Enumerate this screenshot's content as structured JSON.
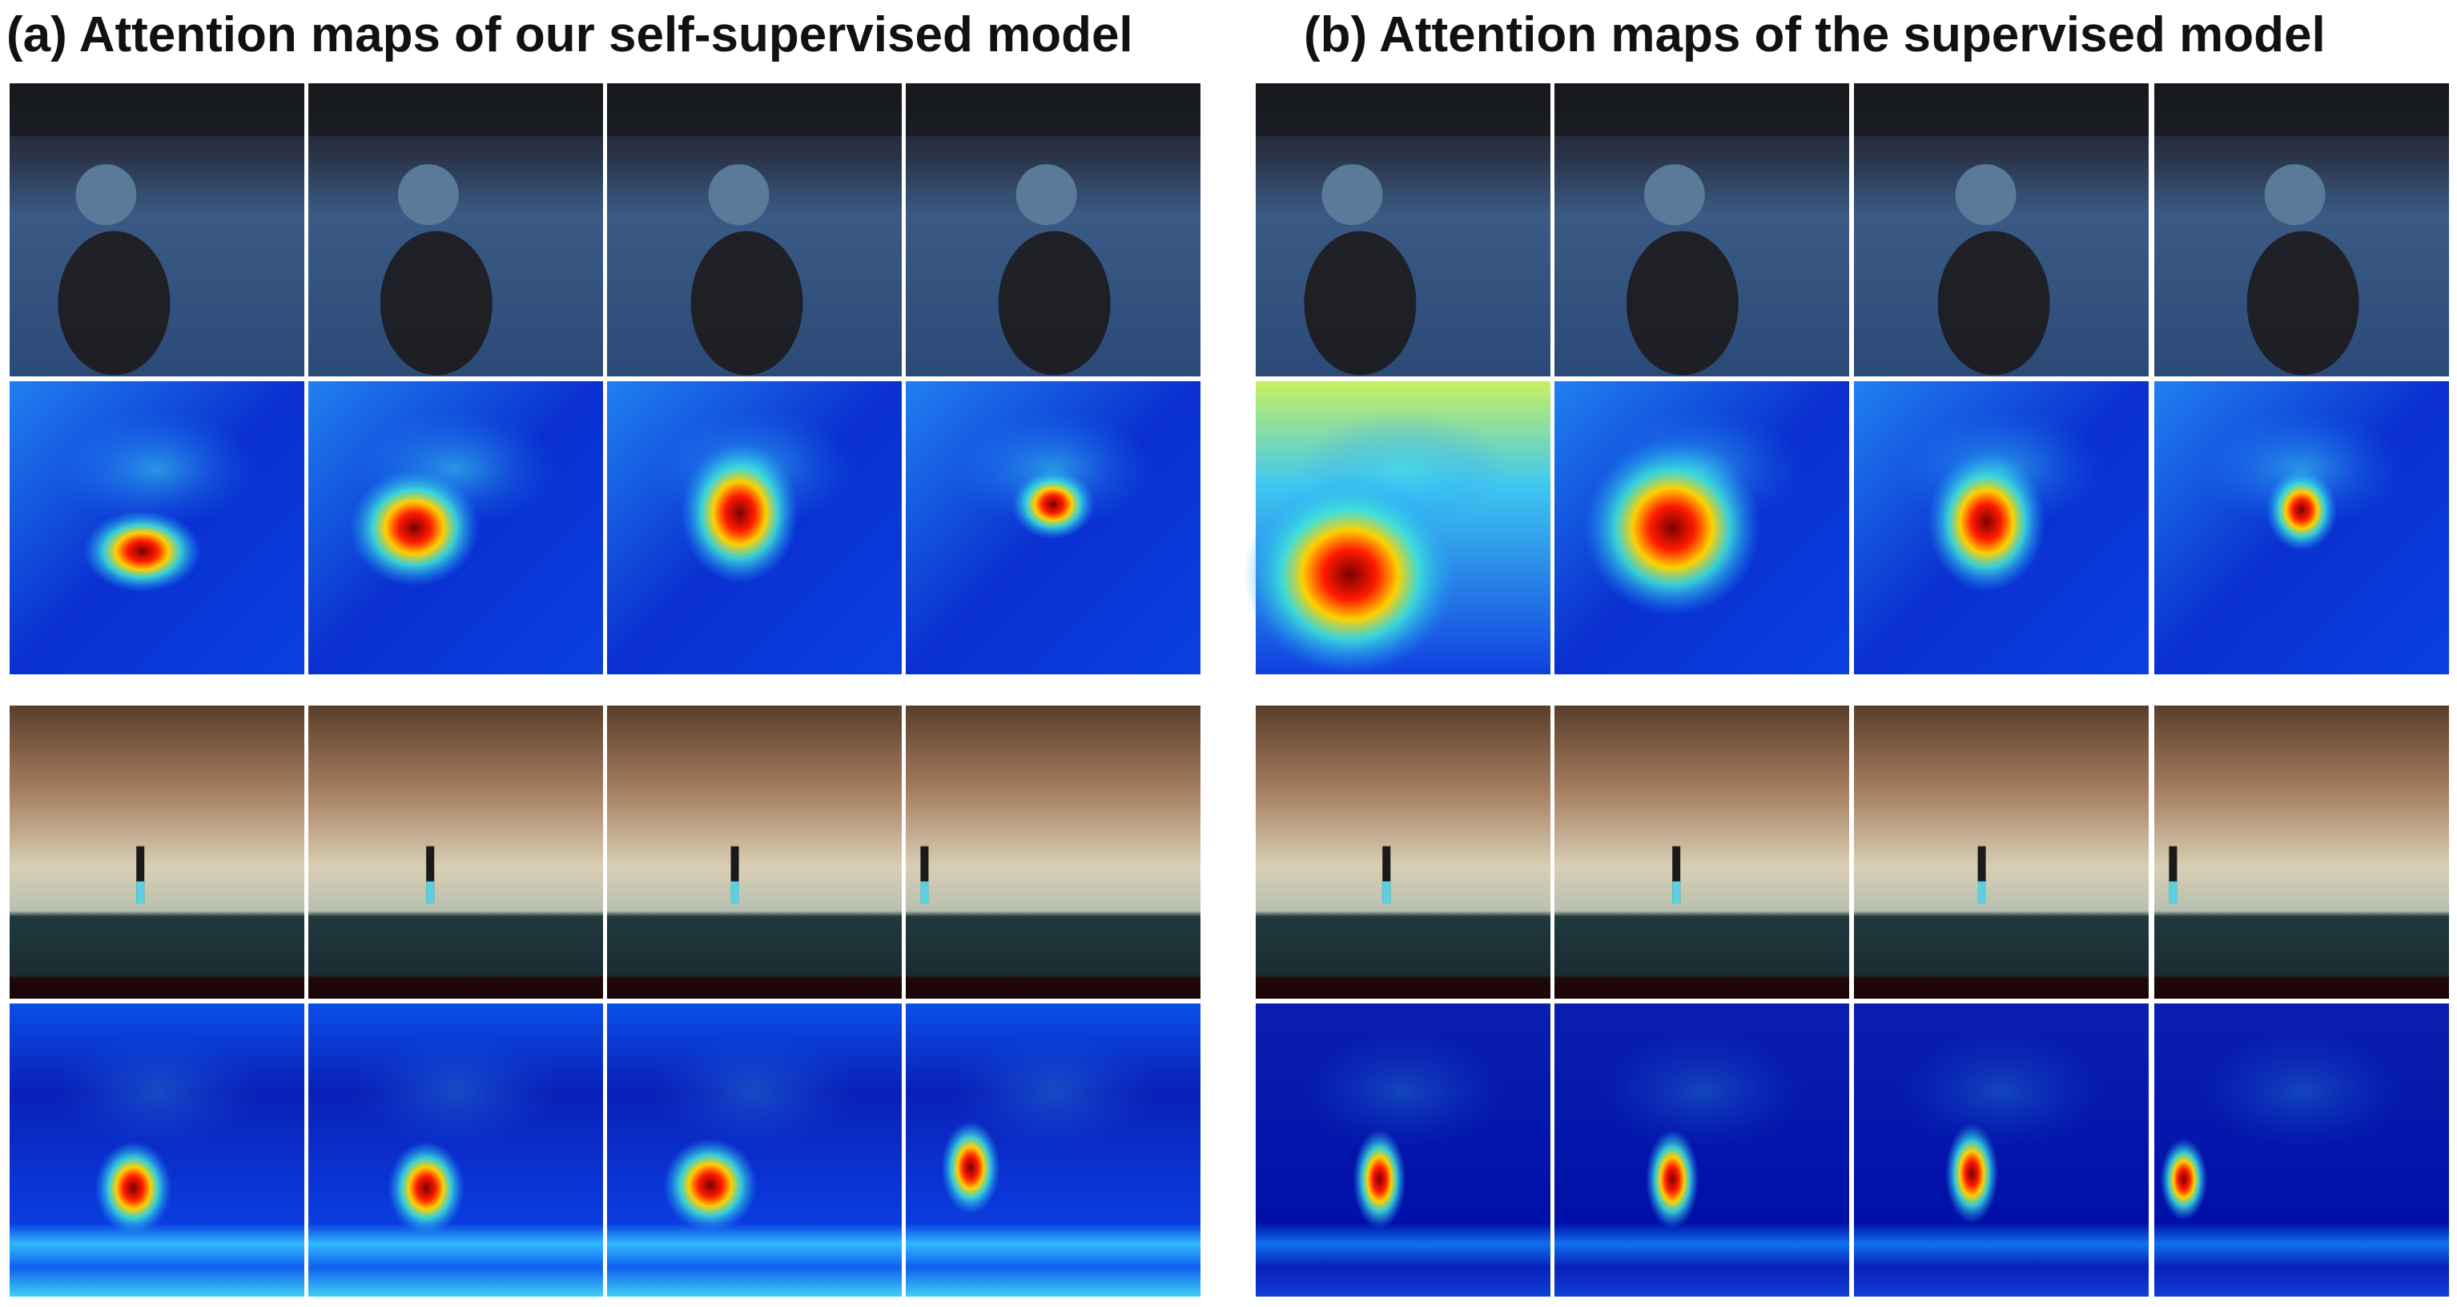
{
  "panels": {
    "a": {
      "title": "(a) Attention maps of our self-supervised model"
    },
    "b": {
      "title": "(b) Attention maps of the supervised model"
    }
  }
}
